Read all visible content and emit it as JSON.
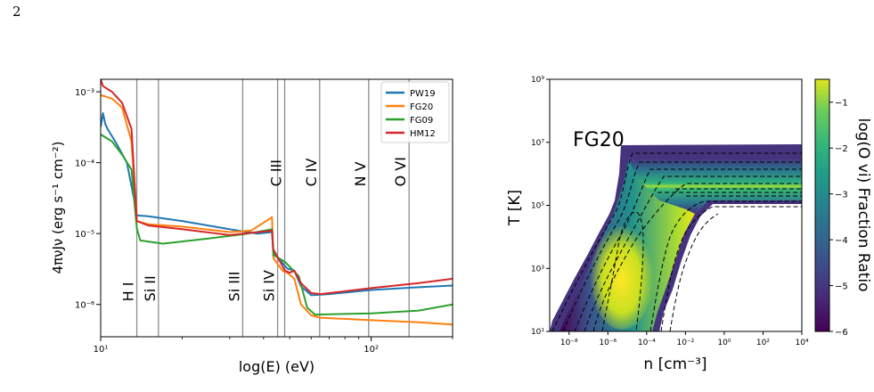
{
  "page": {
    "number": "2"
  },
  "chart_data": [
    {
      "type": "line",
      "xlabel": "log(E) (eV)",
      "ylabel": "4πνJν (erg s⁻¹ cm⁻²)",
      "xscale": "log",
      "yscale": "log",
      "xlim": [
        10,
        200
      ],
      "ylim": [
        3.5e-07,
        0.0015
      ],
      "xticks": [
        {
          "v": 10,
          "label": "10¹"
        },
        {
          "v": 100,
          "label": "10²"
        }
      ],
      "yticks": [
        {
          "v": 1e-06,
          "label": "10⁻⁶"
        },
        {
          "v": 1e-05,
          "label": "10⁻⁵"
        },
        {
          "v": 0.0001,
          "label": "10⁻⁴"
        },
        {
          "v": 0.001,
          "label": "10⁻³"
        }
      ],
      "grid": false,
      "legend": "top-right",
      "ion_lines": [
        {
          "label": "H I",
          "energy": 13.6,
          "label_y": 1.1e-06
        },
        {
          "label": "Si II",
          "energy": 16.35,
          "label_y": 1.1e-06
        },
        {
          "label": "Si III",
          "energy": 33.5,
          "label_y": 1.1e-06
        },
        {
          "label": "Si IV",
          "energy": 45.1,
          "label_y": 1.1e-06
        },
        {
          "label": "C III",
          "energy": 47.9,
          "label_y": 4.6e-05
        },
        {
          "label": "C IV",
          "energy": 64.5,
          "label_y": 4.6e-05
        },
        {
          "label": "N V",
          "energy": 97.9,
          "label_y": 4.6e-05
        },
        {
          "label": "O VI",
          "energy": 138.1,
          "label_y": 4.6e-05
        }
      ],
      "series": [
        {
          "name": "PW19",
          "color": "#1f77b4",
          "x": [
            10.0,
            10.2,
            10.4,
            10.6,
            11.5,
            12.5,
            13.3,
            13.6,
            15,
            20,
            30,
            38,
            43,
            43.5,
            48,
            49,
            52,
            55,
            60,
            70,
            100,
            150,
            200
          ],
          "y": [
            0.00032,
            0.0005,
            0.00035,
            0.0003,
            0.00018,
            0.0001,
            3e-05,
            1.8e-05,
            1.75e-05,
            1.5e-05,
            1.15e-05,
            1e-05,
            1.05e-05,
            5.5e-06,
            3.5e-06,
            3.2e-06,
            3e-06,
            1.8e-06,
            1.35e-06,
            1.4e-06,
            1.6e-06,
            1.75e-06,
            1.85e-06
          ]
        },
        {
          "name": "FG20",
          "color": "#ff7f0e",
          "x": [
            10.0,
            11,
            12,
            13,
            13.6,
            15,
            20,
            30,
            36,
            43,
            43.5,
            47,
            49,
            52,
            55,
            60,
            65,
            100,
            150,
            200
          ],
          "y": [
            0.0009,
            0.0008,
            0.0006,
            0.0002,
            1.5e-05,
            1.35e-05,
            1.25e-05,
            1.05e-05,
            1.1e-05,
            1.7e-05,
            4.5e-06,
            3e-06,
            2.8e-06,
            2.3e-06,
            1e-06,
            7e-07,
            6.5e-07,
            6e-07,
            5.6e-07,
            5.2e-07
          ]
        },
        {
          "name": "FG09",
          "color": "#2ca02c",
          "x": [
            10.0,
            11,
            12,
            13,
            13.6,
            14,
            17,
            25,
            35,
            43,
            43.5,
            48,
            54,
            58,
            62,
            100,
            150,
            200
          ],
          "y": [
            0.00025,
            0.0002,
            0.00013,
            8e-05,
            1.2e-05,
            8e-06,
            7.2e-06,
            8.5e-06,
            1e-05,
            1.15e-05,
            5e-06,
            4e-06,
            2.5e-06,
            9e-07,
            7.2e-07,
            7.5e-07,
            8.2e-07,
            1e-06
          ]
        },
        {
          "name": "HM12",
          "color": "#d62728",
          "x": [
            10.0,
            10.2,
            11,
            12,
            13,
            13.6,
            15,
            20,
            30,
            43,
            43.5,
            48,
            50,
            52,
            55,
            60,
            65,
            100,
            150,
            200
          ],
          "y": [
            0.0015,
            0.0012,
            0.001,
            0.0007,
            0.0003,
            1.5e-05,
            1.3e-05,
            1.15e-05,
            9.5e-06,
            1.1e-05,
            6e-06,
            3e-06,
            2.8e-06,
            3e-06,
            2e-06,
            1.45e-06,
            1.4e-06,
            1.7e-06,
            2e-06,
            2.3e-06
          ]
        }
      ]
    },
    {
      "type": "heatmap",
      "annotation": "FG20",
      "xlabel": "n [cm⁻³]",
      "ylabel": "T [K]",
      "xscale": "log",
      "yscale": "log",
      "xlim": [
        1e-09,
        10000.0
      ],
      "ylim": [
        10.0,
        1000000000.0
      ],
      "xticks": [
        {
          "v": -8,
          "label": "10⁻⁸"
        },
        {
          "v": -6,
          "label": "10⁻⁶"
        },
        {
          "v": -4,
          "label": "10⁻⁴"
        },
        {
          "v": -2,
          "label": "10⁻²"
        },
        {
          "v": 0,
          "label": "10⁰"
        },
        {
          "v": 2,
          "label": "10²"
        },
        {
          "v": 4,
          "label": "10⁴"
        }
      ],
      "yticks": [
        {
          "v": 1,
          "label": "10¹"
        },
        {
          "v": 3,
          "label": "10³"
        },
        {
          "v": 5,
          "label": "10⁵"
        },
        {
          "v": 7,
          "label": "10⁷"
        },
        {
          "v": 9,
          "label": "10⁹"
        }
      ],
      "colorbar": {
        "label": "log(O vi) Fraction Ratio",
        "colormap": "viridis",
        "range": [
          -6,
          -0.5
        ],
        "ticks": [
          {
            "v": -1,
            "label": "−1"
          },
          {
            "v": -2,
            "label": "−2"
          },
          {
            "v": -3,
            "label": "−3"
          },
          {
            "v": -4,
            "label": "−4"
          },
          {
            "v": -5,
            "label": "−5"
          },
          {
            "v": -6,
            "label": "−6"
          }
        ]
      }
    }
  ]
}
